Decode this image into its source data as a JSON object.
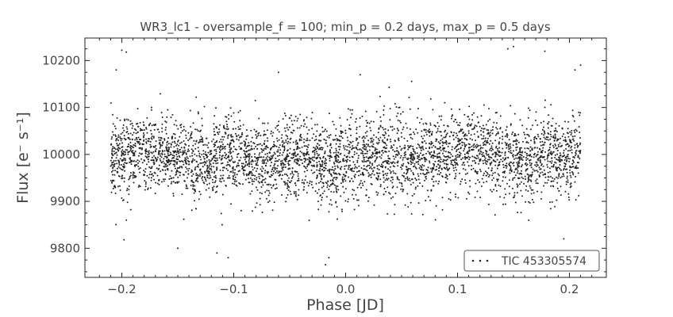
{
  "chart_data": {
    "type": "scatter",
    "title": "WR3_lc1 - oversample_f = 100; min_p = 0.2 days, max_p = 0.5 days",
    "xlabel": "Phase [JD]",
    "ylabel": "Flux [e⁻ s⁻¹]",
    "xlim": [
      -0.233,
      0.233
    ],
    "ylim": [
      9738,
      10248
    ],
    "x_ticks": [
      -0.2,
      -0.1,
      0.0,
      0.1,
      0.2
    ],
    "x_tick_labels": [
      "−0.2",
      "−0.1",
      "0.0",
      "0.1",
      "0.2"
    ],
    "y_ticks": [
      9800,
      9900,
      10000,
      10100,
      10200
    ],
    "y_tick_labels": [
      "9800",
      "9900",
      "10000",
      "10100",
      "10200"
    ],
    "grid": false,
    "legend_position": "lower-right",
    "series": [
      {
        "name": "TIC 453305574",
        "color": "#222222",
        "marker": "dot",
        "x_range": [
          -0.21,
          0.21
        ],
        "baseline_profile": {
          "x": [
            -0.21,
            -0.18,
            -0.15,
            -0.12,
            -0.1,
            -0.08,
            -0.05,
            -0.03,
            -0.01,
            0.0,
            0.02,
            0.05,
            0.08,
            0.1,
            0.12,
            0.15,
            0.18,
            0.21
          ],
          "y": [
            9995,
            10005,
            9995,
            9985,
            10000,
            9975,
            9990,
            9985,
            9975,
            9990,
            9990,
            9995,
            10000,
            10005,
            10010,
            9985,
            9995,
            10000
          ]
        },
        "scatter_std": 42,
        "sample_points": [
          {
            "x": -0.2,
            "y": 10222
          },
          {
            "x": -0.196,
            "y": 10218
          },
          {
            "x": -0.205,
            "y": 10180
          },
          {
            "x": -0.198,
            "y": 9818
          },
          {
            "x": -0.105,
            "y": 9780
          },
          {
            "x": -0.115,
            "y": 9790
          },
          {
            "x": -0.15,
            "y": 9800
          },
          {
            "x": -0.06,
            "y": 10175
          },
          {
            "x": -0.018,
            "y": 9765
          },
          {
            "x": -0.015,
            "y": 9780
          },
          {
            "x": 0.013,
            "y": 10170
          },
          {
            "x": 0.15,
            "y": 10230
          },
          {
            "x": 0.145,
            "y": 10225
          },
          {
            "x": 0.178,
            "y": 10220
          },
          {
            "x": 0.195,
            "y": 9820
          },
          {
            "x": 0.205,
            "y": 10180
          },
          {
            "x": 0.21,
            "y": 10190
          }
        ]
      }
    ]
  }
}
